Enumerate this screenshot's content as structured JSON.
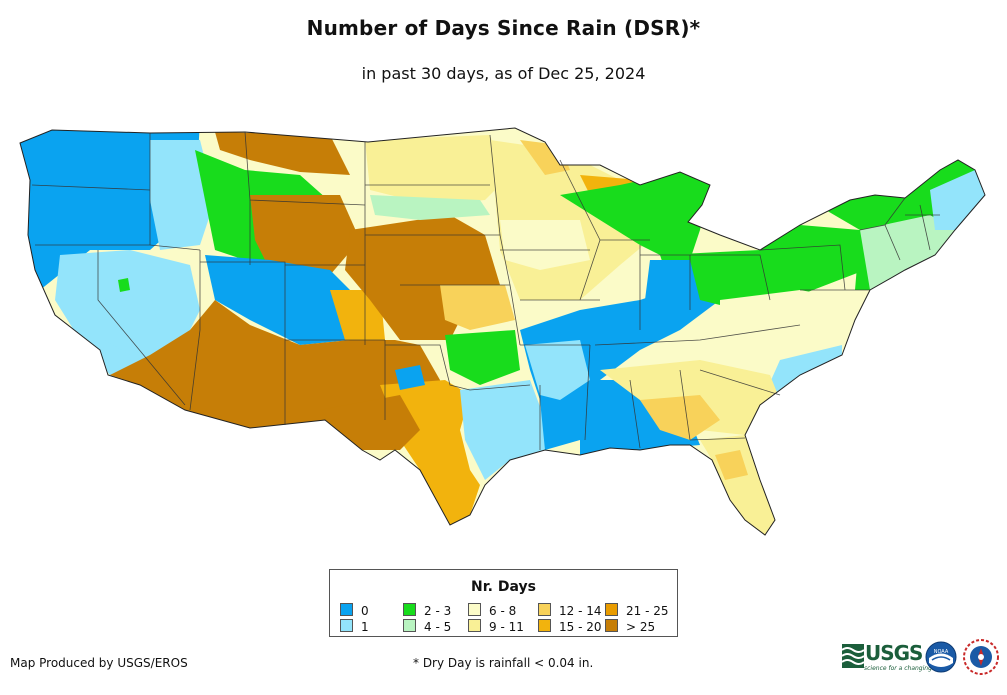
{
  "title": "Number of Days Since Rain (DSR)*",
  "subtitle": "in past 30 days, as of Dec 25, 2024",
  "legend": {
    "title": "Nr. Days",
    "items": [
      {
        "label": "0",
        "color": "#0aa3f0"
      },
      {
        "label": "1",
        "color": "#93e4fb"
      },
      {
        "label": "2 - 3",
        "color": "#18dc1c"
      },
      {
        "label": "4 - 5",
        "color": "#b9f4c1"
      },
      {
        "label": "6 - 8",
        "color": "#fbfbc8"
      },
      {
        "label": "9 - 11",
        "color": "#f9f096"
      },
      {
        "label": "12 - 14",
        "color": "#f8d25a"
      },
      {
        "label": "15 - 20",
        "color": "#f2b30d"
      },
      {
        "label": "21 - 25",
        "color": "#e99c00"
      },
      {
        "label": "> 25",
        "color": "#c67e07"
      }
    ]
  },
  "credit": "Map Produced by USGS/EROS",
  "footnote": "* Dry Day is rainfall < 0.04 in.",
  "logos": {
    "usgs": "USGS",
    "usgs_tagline": "science for a changing world",
    "noaa": "NOAA"
  }
}
